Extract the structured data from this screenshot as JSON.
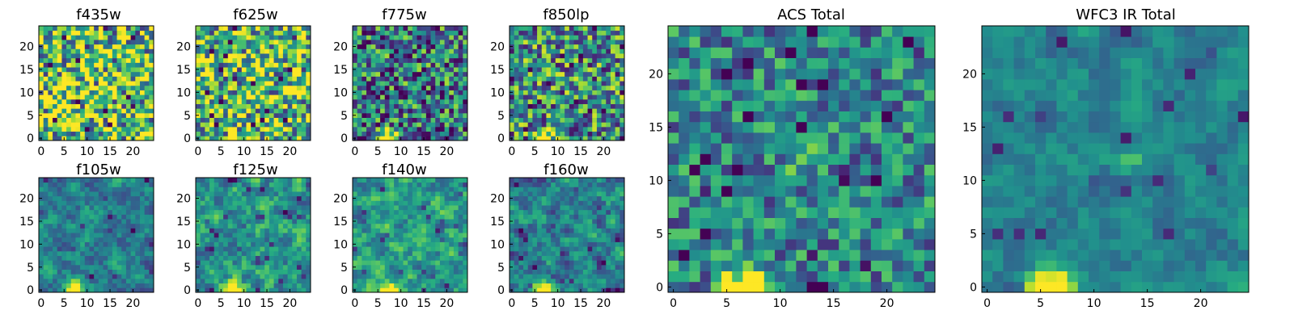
{
  "chart_data": {
    "type": "heatmap",
    "colormap": "viridis",
    "grid_size": 25,
    "panels": [
      {
        "id": "f435w",
        "title": "f435w",
        "row": 0,
        "col": 0,
        "seed": 11,
        "hot_spot": null,
        "mean": 0.72,
        "noise": 0.55,
        "smooth": 0,
        "xticks": [
          0,
          5,
          10,
          15,
          20
        ],
        "yticks": [
          0,
          5,
          10,
          15,
          20
        ]
      },
      {
        "id": "f625w",
        "title": "f625w",
        "row": 0,
        "col": 1,
        "seed": 23,
        "hot_spot": [
          6,
          0
        ],
        "mean": 0.68,
        "noise": 0.5,
        "smooth": 0,
        "xticks": [
          0,
          5,
          10,
          15,
          20
        ],
        "yticks": [
          0,
          5,
          10,
          15,
          20
        ]
      },
      {
        "id": "f775w",
        "title": "f775w",
        "row": 0,
        "col": 2,
        "seed": 37,
        "hot_spot": [
          6,
          0
        ],
        "mean": 0.42,
        "noise": 0.45,
        "smooth": 0,
        "xticks": [
          0,
          5,
          10,
          15,
          20
        ],
        "yticks": [
          0,
          5,
          10,
          15,
          20
        ]
      },
      {
        "id": "f850lp",
        "title": "f850lp",
        "row": 0,
        "col": 3,
        "seed": 41,
        "hot_spot": [
          6,
          0
        ],
        "mean": 0.5,
        "noise": 0.45,
        "smooth": 0,
        "xticks": [
          0,
          5,
          10,
          15,
          20
        ],
        "yticks": [
          0,
          5,
          10,
          15,
          20
        ]
      },
      {
        "id": "f105w",
        "title": "f105w",
        "row": 1,
        "col": 0,
        "seed": 53,
        "hot_spot": [
          6,
          0
        ],
        "mean": 0.45,
        "noise": 0.35,
        "smooth": 1,
        "xticks": [
          0,
          5,
          10,
          15,
          20
        ],
        "yticks": [
          0,
          5,
          10,
          15,
          20
        ]
      },
      {
        "id": "f125w",
        "title": "f125w",
        "row": 1,
        "col": 1,
        "seed": 67,
        "hot_spot": [
          6,
          0
        ],
        "mean": 0.55,
        "noise": 0.4,
        "smooth": 1,
        "xticks": [
          0,
          5,
          10,
          15,
          20
        ],
        "yticks": [
          0,
          5,
          10,
          15,
          20
        ]
      },
      {
        "id": "f140w",
        "title": "f140w",
        "row": 1,
        "col": 2,
        "seed": 71,
        "hot_spot": [
          6,
          0
        ],
        "mean": 0.55,
        "noise": 0.4,
        "smooth": 1,
        "xticks": [
          0,
          5,
          10,
          15,
          20
        ],
        "yticks": [
          0,
          5,
          10,
          15,
          20
        ]
      },
      {
        "id": "f160w",
        "title": "f160w",
        "row": 1,
        "col": 3,
        "seed": 83,
        "hot_spot": [
          6,
          0
        ],
        "mean": 0.45,
        "noise": 0.4,
        "smooth": 1,
        "xticks": [
          0,
          5,
          10,
          15,
          20
        ],
        "yticks": [
          0,
          5,
          10,
          15,
          20
        ]
      },
      {
        "id": "acs-total",
        "title": "ACS Total",
        "row": 0,
        "col": 4,
        "span": "large",
        "seed": 97,
        "hot_spot": [
          6,
          0
        ],
        "second_spot": [
          12,
          12
        ],
        "mean": 0.45,
        "noise": 0.3,
        "smooth": 0,
        "xticks": [
          0,
          5,
          10,
          15,
          20
        ],
        "yticks": [
          0,
          5,
          10,
          15,
          20
        ]
      },
      {
        "id": "wfc3-ir-total",
        "title": "WFC3 IR Total",
        "row": 0,
        "col": 5,
        "span": "large",
        "seed": 103,
        "hot_spot": [
          5,
          0
        ],
        "second_spot": [
          13,
          12
        ],
        "mean": 0.45,
        "noise": 0.22,
        "smooth": 1,
        "xticks": [
          0,
          5,
          10,
          15,
          20
        ],
        "yticks": [
          0,
          5,
          10,
          15,
          20
        ]
      }
    ]
  }
}
